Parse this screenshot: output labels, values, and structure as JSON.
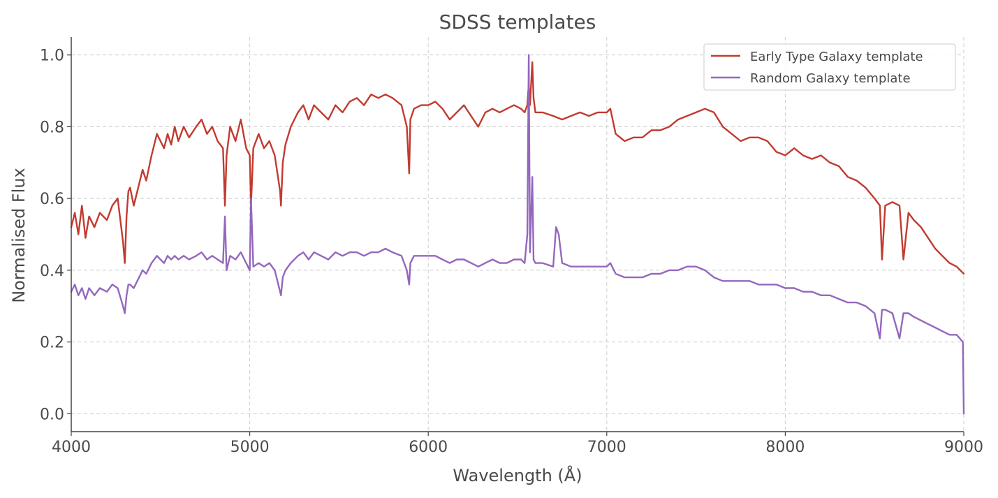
{
  "chart_data": {
    "type": "line",
    "title": "SDSS templates",
    "xlabel": "Wavelength (Å)",
    "ylabel": "Normalised Flux",
    "xlim": [
      4000,
      9000
    ],
    "ylim": [
      -0.05,
      1.05
    ],
    "xticks": [
      4000,
      5000,
      6000,
      7000,
      8000,
      9000
    ],
    "xtick_labels": [
      "4000",
      "5000",
      "6000",
      "7000",
      "8000",
      "9000"
    ],
    "yticks": [
      0.0,
      0.2,
      0.4,
      0.6,
      0.8,
      1.0
    ],
    "ytick_labels": [
      "0.0",
      "0.2",
      "0.4",
      "0.6",
      "0.8",
      "1.0"
    ],
    "grid": true,
    "legend_position": "top-right",
    "series": [
      {
        "name": "Early Type Galaxy template",
        "color": "#c23a2f",
        "x": [
          4000,
          4020,
          4040,
          4060,
          4080,
          4100,
          4130,
          4160,
          4200,
          4230,
          4260,
          4290,
          4300,
          4310,
          4320,
          4330,
          4350,
          4370,
          4400,
          4420,
          4450,
          4480,
          4500,
          4520,
          4540,
          4560,
          4580,
          4600,
          4630,
          4660,
          4700,
          4730,
          4760,
          4790,
          4820,
          4850,
          4861,
          4870,
          4890,
          4920,
          4950,
          4980,
          5000,
          5007,
          5020,
          5050,
          5080,
          5110,
          5140,
          5170,
          5175,
          5185,
          5200,
          5230,
          5270,
          5300,
          5330,
          5360,
          5400,
          5440,
          5480,
          5520,
          5560,
          5600,
          5640,
          5680,
          5720,
          5760,
          5800,
          5850,
          5880,
          5893,
          5900,
          5920,
          5960,
          6000,
          6040,
          6080,
          6120,
          6160,
          6200,
          6240,
          6280,
          6320,
          6360,
          6400,
          6440,
          6480,
          6520,
          6540,
          6555,
          6563,
          6570,
          6583,
          6590,
          6600,
          6640,
          6700,
          6750,
          6800,
          6850,
          6900,
          6950,
          7000,
          7020,
          7050,
          7100,
          7150,
          7200,
          7250,
          7300,
          7350,
          7400,
          7450,
          7500,
          7550,
          7600,
          7650,
          7700,
          7750,
          7800,
          7850,
          7900,
          7950,
          8000,
          8050,
          8100,
          8150,
          8200,
          8250,
          8300,
          8350,
          8400,
          8450,
          8500,
          8530,
          8542,
          8560,
          8600,
          8640,
          8662,
          8690,
          8720,
          8760,
          8800,
          8840,
          8880,
          8920,
          8960,
          9000
        ],
        "y": [
          0.52,
          0.56,
          0.5,
          0.58,
          0.49,
          0.55,
          0.52,
          0.56,
          0.54,
          0.58,
          0.6,
          0.48,
          0.42,
          0.55,
          0.62,
          0.63,
          0.58,
          0.62,
          0.68,
          0.65,
          0.72,
          0.78,
          0.76,
          0.74,
          0.78,
          0.75,
          0.8,
          0.76,
          0.8,
          0.77,
          0.8,
          0.82,
          0.78,
          0.8,
          0.76,
          0.74,
          0.58,
          0.72,
          0.8,
          0.76,
          0.82,
          0.74,
          0.72,
          0.58,
          0.74,
          0.78,
          0.74,
          0.76,
          0.72,
          0.62,
          0.58,
          0.7,
          0.75,
          0.8,
          0.84,
          0.86,
          0.82,
          0.86,
          0.84,
          0.82,
          0.86,
          0.84,
          0.87,
          0.88,
          0.86,
          0.89,
          0.88,
          0.89,
          0.88,
          0.86,
          0.8,
          0.67,
          0.82,
          0.85,
          0.86,
          0.86,
          0.87,
          0.85,
          0.82,
          0.84,
          0.86,
          0.83,
          0.8,
          0.84,
          0.85,
          0.84,
          0.85,
          0.86,
          0.85,
          0.84,
          0.86,
          0.92,
          0.86,
          0.98,
          0.88,
          0.84,
          0.84,
          0.83,
          0.82,
          0.83,
          0.84,
          0.83,
          0.84,
          0.84,
          0.85,
          0.78,
          0.76,
          0.77,
          0.77,
          0.79,
          0.79,
          0.8,
          0.82,
          0.83,
          0.84,
          0.85,
          0.84,
          0.8,
          0.78,
          0.76,
          0.77,
          0.77,
          0.76,
          0.73,
          0.72,
          0.74,
          0.72,
          0.71,
          0.72,
          0.7,
          0.69,
          0.66,
          0.65,
          0.63,
          0.6,
          0.58,
          0.43,
          0.58,
          0.59,
          0.58,
          0.43,
          0.56,
          0.54,
          0.52,
          0.49,
          0.46,
          0.44,
          0.42,
          0.41,
          0.39
        ]
      },
      {
        "name": "Random Galaxy template",
        "color": "#9467bd",
        "x": [
          4000,
          4020,
          4040,
          4060,
          4080,
          4100,
          4130,
          4160,
          4200,
          4230,
          4260,
          4290,
          4300,
          4310,
          4320,
          4330,
          4350,
          4370,
          4400,
          4420,
          4450,
          4480,
          4500,
          4520,
          4540,
          4560,
          4580,
          4600,
          4630,
          4660,
          4700,
          4730,
          4760,
          4790,
          4820,
          4850,
          4861,
          4870,
          4890,
          4920,
          4950,
          4980,
          5000,
          5007,
          5020,
          5050,
          5080,
          5110,
          5140,
          5170,
          5175,
          5185,
          5200,
          5230,
          5270,
          5300,
          5330,
          5360,
          5400,
          5440,
          5480,
          5520,
          5560,
          5600,
          5640,
          5680,
          5720,
          5760,
          5800,
          5850,
          5880,
          5893,
          5900,
          5920,
          5960,
          6000,
          6040,
          6080,
          6120,
          6160,
          6200,
          6240,
          6280,
          6320,
          6360,
          6400,
          6440,
          6480,
          6520,
          6540,
          6555,
          6563,
          6570,
          6583,
          6590,
          6600,
          6640,
          6700,
          6716,
          6731,
          6750,
          6800,
          6850,
          6900,
          6950,
          7000,
          7020,
          7050,
          7100,
          7150,
          7200,
          7250,
          7300,
          7350,
          7400,
          7450,
          7500,
          7550,
          7600,
          7650,
          7700,
          7750,
          7800,
          7850,
          7900,
          7950,
          8000,
          8050,
          8100,
          8150,
          8200,
          8250,
          8300,
          8350,
          8400,
          8450,
          8500,
          8530,
          8542,
          8560,
          8600,
          8640,
          8662,
          8690,
          8720,
          8760,
          8800,
          8840,
          8880,
          8920,
          8960,
          8995,
          9000
        ],
        "y": [
          0.34,
          0.36,
          0.33,
          0.35,
          0.32,
          0.35,
          0.33,
          0.35,
          0.34,
          0.36,
          0.35,
          0.3,
          0.28,
          0.33,
          0.36,
          0.36,
          0.35,
          0.37,
          0.4,
          0.39,
          0.42,
          0.44,
          0.43,
          0.42,
          0.44,
          0.43,
          0.44,
          0.43,
          0.44,
          0.43,
          0.44,
          0.45,
          0.43,
          0.44,
          0.43,
          0.42,
          0.55,
          0.4,
          0.44,
          0.43,
          0.45,
          0.42,
          0.4,
          0.6,
          0.41,
          0.42,
          0.41,
          0.42,
          0.4,
          0.34,
          0.33,
          0.38,
          0.4,
          0.42,
          0.44,
          0.45,
          0.43,
          0.45,
          0.44,
          0.43,
          0.45,
          0.44,
          0.45,
          0.45,
          0.44,
          0.45,
          0.45,
          0.46,
          0.45,
          0.44,
          0.4,
          0.36,
          0.42,
          0.44,
          0.44,
          0.44,
          0.44,
          0.43,
          0.42,
          0.43,
          0.43,
          0.42,
          0.41,
          0.42,
          0.43,
          0.42,
          0.42,
          0.43,
          0.43,
          0.42,
          0.5,
          1.0,
          0.45,
          0.66,
          0.43,
          0.42,
          0.42,
          0.41,
          0.52,
          0.5,
          0.42,
          0.41,
          0.41,
          0.41,
          0.41,
          0.41,
          0.42,
          0.39,
          0.38,
          0.38,
          0.38,
          0.39,
          0.39,
          0.4,
          0.4,
          0.41,
          0.41,
          0.4,
          0.38,
          0.37,
          0.37,
          0.37,
          0.37,
          0.36,
          0.36,
          0.36,
          0.35,
          0.35,
          0.34,
          0.34,
          0.33,
          0.33,
          0.32,
          0.31,
          0.31,
          0.3,
          0.28,
          0.21,
          0.29,
          0.29,
          0.28,
          0.21,
          0.28,
          0.28,
          0.27,
          0.26,
          0.25,
          0.24,
          0.23,
          0.22,
          0.22,
          0.2,
          0.0
        ]
      }
    ]
  }
}
